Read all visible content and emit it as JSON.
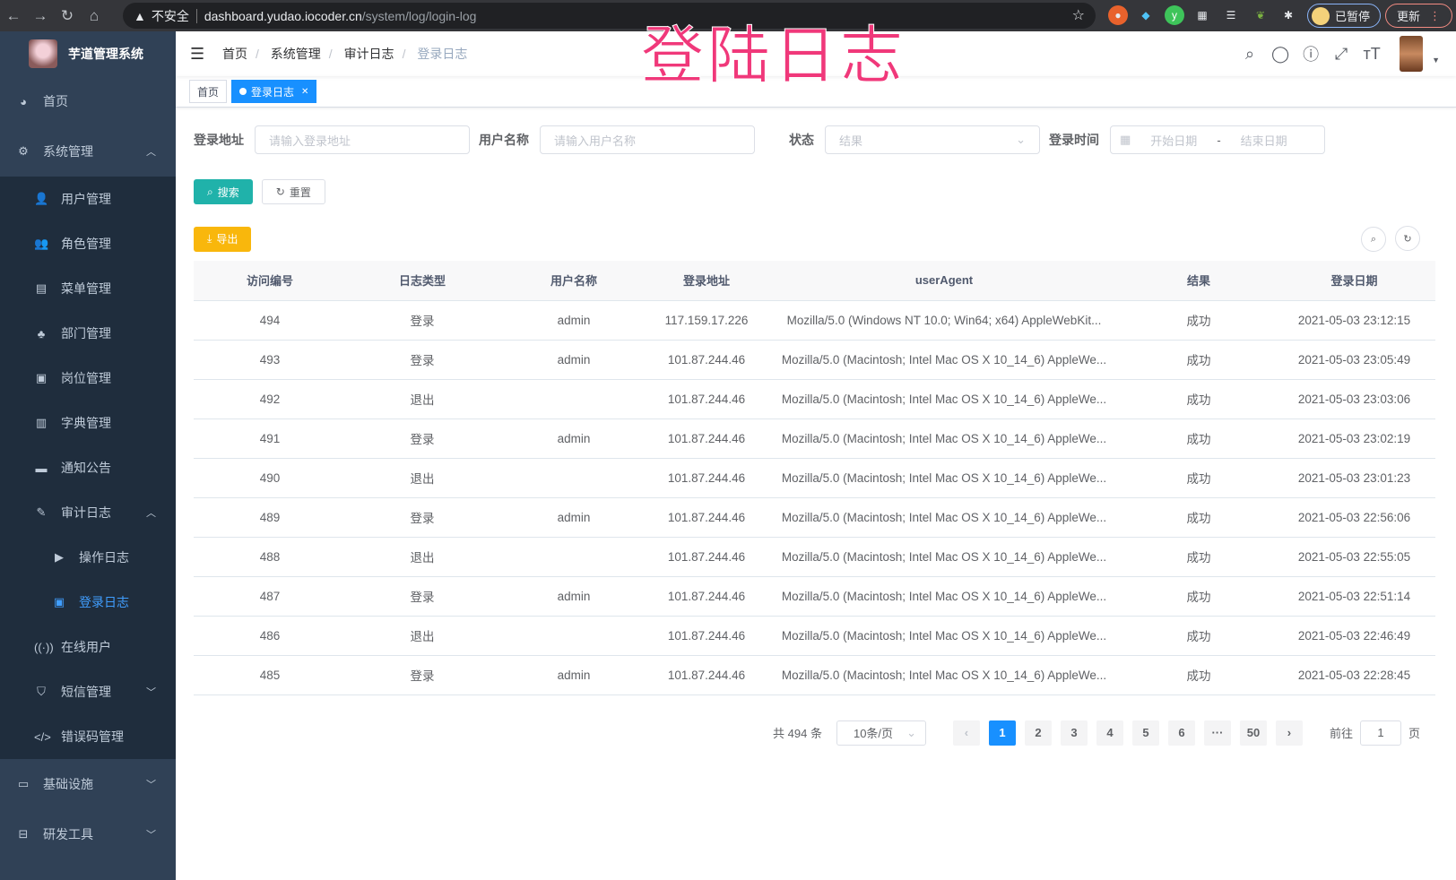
{
  "browser": {
    "insecure_label": "不安全",
    "url_host": "dashboard.yudao.iocoder.cn",
    "url_path": "/system/log/login-log",
    "profile_label": "已暂停",
    "update_label": "更新"
  },
  "overlay_title": "登陆日志",
  "sidebar": {
    "app_title": "芋道管理系统",
    "items": [
      {
        "label": "首页",
        "icon": "dashboard-icon"
      },
      {
        "label": "系统管理",
        "icon": "gear-icon",
        "expanded": true,
        "children": [
          {
            "label": "用户管理",
            "icon": "user-icon"
          },
          {
            "label": "角色管理",
            "icon": "peoples-icon"
          },
          {
            "label": "菜单管理",
            "icon": "tree-table-icon"
          },
          {
            "label": "部门管理",
            "icon": "tree-icon"
          },
          {
            "label": "岗位管理",
            "icon": "post-icon"
          },
          {
            "label": "字典管理",
            "icon": "dict-icon"
          },
          {
            "label": "通知公告",
            "icon": "message-icon"
          },
          {
            "label": "审计日志",
            "icon": "log-icon",
            "expanded": true,
            "children": [
              {
                "label": "操作日志",
                "icon": "form-icon"
              },
              {
                "label": "登录日志",
                "icon": "logininfor-icon",
                "active": true
              }
            ]
          },
          {
            "label": "在线用户",
            "icon": "online-icon"
          },
          {
            "label": "短信管理",
            "icon": "validcode-icon"
          },
          {
            "label": "错误码管理",
            "icon": "code-icon"
          }
        ]
      },
      {
        "label": "基础设施",
        "icon": "monitor-icon"
      },
      {
        "label": "研发工具",
        "icon": "tool-icon"
      }
    ]
  },
  "navbar": {
    "breadcrumb": [
      "首页",
      "系统管理",
      "审计日志",
      "登录日志"
    ]
  },
  "tags": [
    {
      "label": "首页"
    },
    {
      "label": "登录日志",
      "active": true
    }
  ],
  "search": {
    "ip_label": "登录地址",
    "ip_placeholder": "请输入登录地址",
    "user_label": "用户名称",
    "user_placeholder": "请输入用户名称",
    "status_label": "状态",
    "status_placeholder": "结果",
    "time_label": "登录时间",
    "start_placeholder": "开始日期",
    "range_sep": "-",
    "end_placeholder": "结束日期",
    "search_btn": "搜索",
    "reset_btn": "重置",
    "export_btn": "导出"
  },
  "table": {
    "columns": [
      "访问编号",
      "日志类型",
      "用户名称",
      "登录地址",
      "userAgent",
      "结果",
      "登录日期"
    ],
    "rows": [
      [
        "494",
        "登录",
        "admin",
        "117.159.17.226",
        "Mozilla/5.0 (Windows NT 10.0; Win64; x64) AppleWebKit...",
        "成功",
        "2021-05-03 23:12:15"
      ],
      [
        "493",
        "登录",
        "admin",
        "101.87.244.46",
        "Mozilla/5.0 (Macintosh; Intel Mac OS X 10_14_6) AppleWe...",
        "成功",
        "2021-05-03 23:05:49"
      ],
      [
        "492",
        "退出",
        "",
        "101.87.244.46",
        "Mozilla/5.0 (Macintosh; Intel Mac OS X 10_14_6) AppleWe...",
        "成功",
        "2021-05-03 23:03:06"
      ],
      [
        "491",
        "登录",
        "admin",
        "101.87.244.46",
        "Mozilla/5.0 (Macintosh; Intel Mac OS X 10_14_6) AppleWe...",
        "成功",
        "2021-05-03 23:02:19"
      ],
      [
        "490",
        "退出",
        "",
        "101.87.244.46",
        "Mozilla/5.0 (Macintosh; Intel Mac OS X 10_14_6) AppleWe...",
        "成功",
        "2021-05-03 23:01:23"
      ],
      [
        "489",
        "登录",
        "admin",
        "101.87.244.46",
        "Mozilla/5.0 (Macintosh; Intel Mac OS X 10_14_6) AppleWe...",
        "成功",
        "2021-05-03 22:56:06"
      ],
      [
        "488",
        "退出",
        "",
        "101.87.244.46",
        "Mozilla/5.0 (Macintosh; Intel Mac OS X 10_14_6) AppleWe...",
        "成功",
        "2021-05-03 22:55:05"
      ],
      [
        "487",
        "登录",
        "admin",
        "101.87.244.46",
        "Mozilla/5.0 (Macintosh; Intel Mac OS X 10_14_6) AppleWe...",
        "成功",
        "2021-05-03 22:51:14"
      ],
      [
        "486",
        "退出",
        "",
        "101.87.244.46",
        "Mozilla/5.0 (Macintosh; Intel Mac OS X 10_14_6) AppleWe...",
        "成功",
        "2021-05-03 22:46:49"
      ],
      [
        "485",
        "登录",
        "admin",
        "101.87.244.46",
        "Mozilla/5.0 (Macintosh; Intel Mac OS X 10_14_6) AppleWe...",
        "成功",
        "2021-05-03 22:28:45"
      ]
    ]
  },
  "pagination": {
    "total_label": "共 494 条",
    "page_size": "10条/页",
    "pages": [
      "1",
      "2",
      "3",
      "4",
      "5",
      "6",
      "···",
      "50"
    ],
    "current": "1",
    "goto_label": "前往",
    "goto_value": "1",
    "page_suffix": "页"
  },
  "colors": {
    "sidebar_bg": "#304156",
    "accent": "#1890ff",
    "search_btn": "#20b2aa",
    "export_btn": "#f9b70c",
    "overlay_title": "#f0387a"
  }
}
